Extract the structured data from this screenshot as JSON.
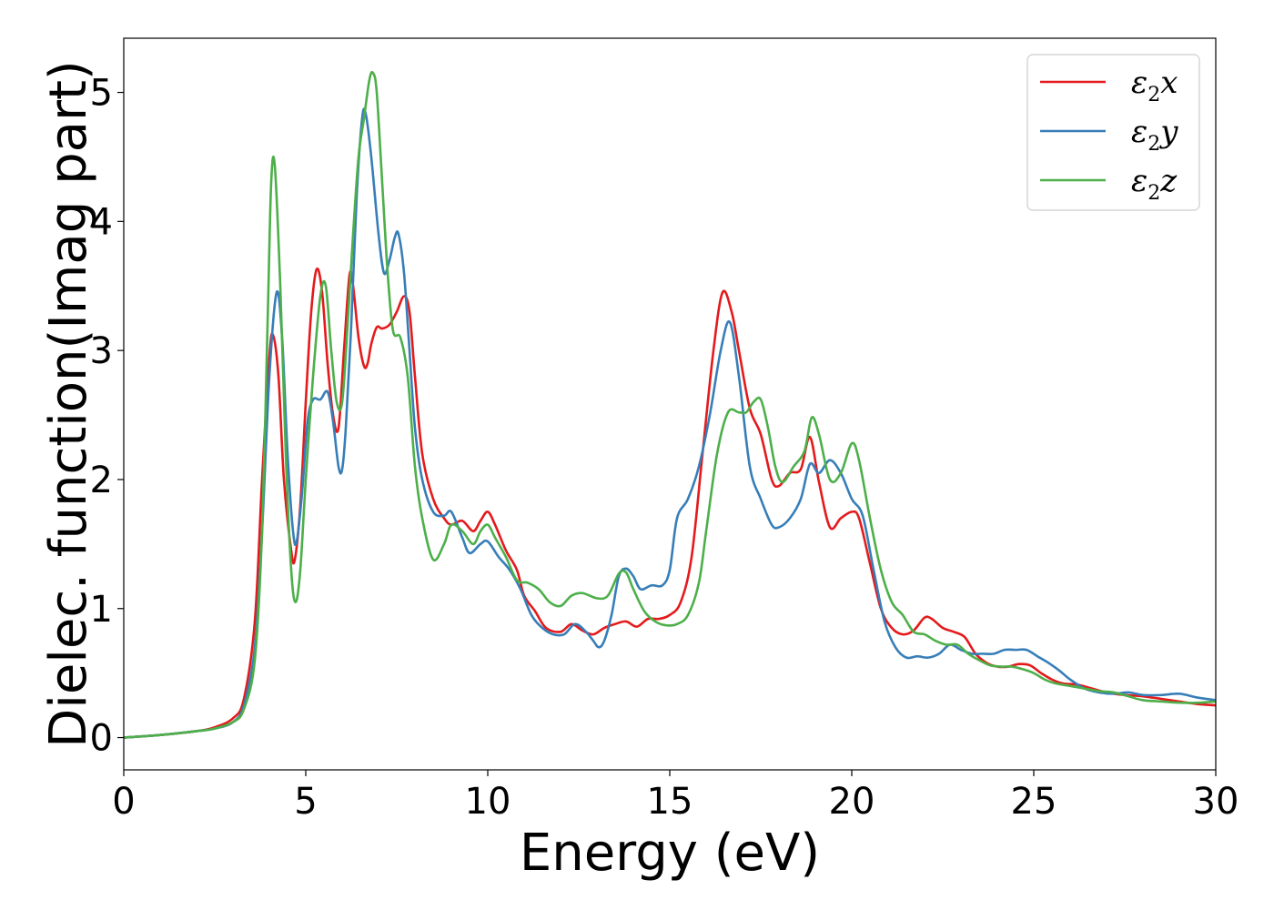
{
  "chart_data": {
    "type": "line",
    "xlabel": "Energy (eV)",
    "ylabel": "Dielec. function(Imag part)",
    "xlim": [
      0,
      30
    ],
    "ylim": [
      -0.25,
      5.42
    ],
    "xticks": [
      0,
      5,
      10,
      15,
      20,
      25,
      30
    ],
    "yticks": [
      0,
      1,
      2,
      3,
      4,
      5
    ],
    "grid": false,
    "legend_position": "top-right",
    "series": [
      {
        "name": "ε2x",
        "legend_base": "ε",
        "legend_sub": "2",
        "legend_suffix": "x",
        "color": "#e41a1c",
        "x": [
          0,
          1,
          2,
          2.5,
          3,
          3.3,
          3.6,
          3.8,
          4.0,
          4.1,
          4.25,
          4.4,
          4.6,
          4.7,
          4.85,
          5.0,
          5.15,
          5.3,
          5.45,
          5.6,
          5.75,
          5.9,
          6.05,
          6.2,
          6.3,
          6.45,
          6.6,
          6.7,
          6.8,
          6.95,
          7.1,
          7.3,
          7.5,
          7.7,
          7.85,
          8.0,
          8.2,
          8.5,
          8.8,
          9.0,
          9.3,
          9.6,
          9.8,
          10.0,
          10.2,
          10.5,
          10.8,
          11.0,
          11.3,
          11.6,
          12.0,
          12.3,
          12.6,
          12.9,
          13.2,
          13.5,
          13.8,
          14.1,
          14.4,
          14.7,
          15.0,
          15.3,
          15.6,
          15.9,
          16.2,
          16.45,
          16.7,
          16.9,
          17.2,
          17.5,
          17.8,
          18.0,
          18.3,
          18.6,
          18.85,
          19.1,
          19.4,
          19.7,
          20.0,
          20.2,
          20.5,
          20.8,
          21.1,
          21.4,
          21.7,
          22.0,
          22.2,
          22.5,
          22.8,
          23.1,
          23.4,
          23.7,
          24.0,
          24.3,
          24.6,
          24.9,
          25.2,
          25.5,
          25.8,
          26.2,
          26.6,
          27.0,
          27.5,
          28.0,
          28.5,
          29.0,
          29.5,
          30.0
        ],
        "values": [
          0.0,
          0.02,
          0.05,
          0.08,
          0.15,
          0.3,
          0.9,
          2.0,
          2.95,
          3.12,
          2.8,
          2.0,
          1.45,
          1.38,
          1.8,
          2.6,
          3.3,
          3.63,
          3.45,
          2.9,
          2.5,
          2.4,
          3.0,
          3.58,
          3.5,
          3.1,
          2.88,
          2.9,
          3.05,
          3.18,
          3.17,
          3.2,
          3.3,
          3.42,
          3.3,
          2.8,
          2.2,
          1.85,
          1.7,
          1.65,
          1.68,
          1.6,
          1.68,
          1.75,
          1.65,
          1.45,
          1.3,
          1.1,
          0.98,
          0.85,
          0.82,
          0.88,
          0.83,
          0.8,
          0.85,
          0.88,
          0.9,
          0.86,
          0.92,
          0.92,
          0.95,
          1.05,
          1.4,
          2.2,
          3.0,
          3.45,
          3.3,
          3.0,
          2.55,
          2.35,
          2.0,
          1.95,
          2.05,
          2.08,
          2.33,
          1.98,
          1.63,
          1.7,
          1.75,
          1.7,
          1.35,
          1.0,
          0.85,
          0.8,
          0.83,
          0.93,
          0.92,
          0.85,
          0.82,
          0.78,
          0.65,
          0.58,
          0.55,
          0.55,
          0.57,
          0.56,
          0.5,
          0.45,
          0.42,
          0.41,
          0.38,
          0.35,
          0.33,
          0.32,
          0.3,
          0.28,
          0.26,
          0.25
        ]
      },
      {
        "name": "ε2y",
        "legend_base": "ε",
        "legend_sub": "2",
        "legend_suffix": "y",
        "color": "#377eb8",
        "x": [
          0,
          1,
          2,
          2.5,
          3,
          3.3,
          3.6,
          3.8,
          4.0,
          4.2,
          4.35,
          4.5,
          4.65,
          4.75,
          4.9,
          5.05,
          5.2,
          5.4,
          5.6,
          5.75,
          5.9,
          6.0,
          6.1,
          6.25,
          6.4,
          6.55,
          6.65,
          6.8,
          7.0,
          7.15,
          7.3,
          7.45,
          7.55,
          7.7,
          7.85,
          8.0,
          8.2,
          8.5,
          8.8,
          9.0,
          9.3,
          9.5,
          9.8,
          10.0,
          10.3,
          10.6,
          10.9,
          11.2,
          11.5,
          11.8,
          12.1,
          12.4,
          12.7,
          12.9,
          13.05,
          13.2,
          13.4,
          13.6,
          13.8,
          14.0,
          14.2,
          14.5,
          14.8,
          15.0,
          15.2,
          15.5,
          15.8,
          16.1,
          16.4,
          16.65,
          16.9,
          17.2,
          17.5,
          17.8,
          18.0,
          18.3,
          18.6,
          18.85,
          19.1,
          19.4,
          19.7,
          20.0,
          20.3,
          20.6,
          20.9,
          21.2,
          21.5,
          21.8,
          22.1,
          22.4,
          22.7,
          23.0,
          23.3,
          23.6,
          23.9,
          24.2,
          24.5,
          24.8,
          25.1,
          25.4,
          25.7,
          26.0,
          26.4,
          26.8,
          27.2,
          27.6,
          28.0,
          28.5,
          29.0,
          29.5,
          30.0
        ],
        "values": [
          0.0,
          0.02,
          0.05,
          0.07,
          0.12,
          0.25,
          0.7,
          1.6,
          2.8,
          3.45,
          3.1,
          2.2,
          1.6,
          1.52,
          1.9,
          2.45,
          2.62,
          2.62,
          2.68,
          2.45,
          2.1,
          2.08,
          2.4,
          3.2,
          4.2,
          4.8,
          4.83,
          4.5,
          3.9,
          3.6,
          3.7,
          3.88,
          3.9,
          3.6,
          3.0,
          2.4,
          2.0,
          1.75,
          1.72,
          1.75,
          1.55,
          1.43,
          1.5,
          1.52,
          1.4,
          1.3,
          1.15,
          0.95,
          0.85,
          0.8,
          0.8,
          0.88,
          0.82,
          0.75,
          0.7,
          0.75,
          0.95,
          1.25,
          1.31,
          1.25,
          1.15,
          1.18,
          1.18,
          1.3,
          1.7,
          1.85,
          2.1,
          2.5,
          3.0,
          3.22,
          2.8,
          2.1,
          1.85,
          1.65,
          1.63,
          1.7,
          1.85,
          2.12,
          2.05,
          2.15,
          2.05,
          1.85,
          1.72,
          1.3,
          0.9,
          0.7,
          0.62,
          0.63,
          0.62,
          0.65,
          0.72,
          0.68,
          0.65,
          0.65,
          0.65,
          0.68,
          0.68,
          0.68,
          0.63,
          0.58,
          0.52,
          0.45,
          0.38,
          0.35,
          0.34,
          0.35,
          0.33,
          0.33,
          0.34,
          0.31,
          0.29
        ]
      },
      {
        "name": "ε2z",
        "legend_base": "ε",
        "legend_sub": "2",
        "legend_suffix": "z",
        "color": "#4daf4a",
        "x": [
          0,
          1,
          2,
          2.5,
          3,
          3.3,
          3.6,
          3.8,
          3.95,
          4.05,
          4.15,
          4.3,
          4.45,
          4.6,
          4.72,
          4.85,
          5.0,
          5.2,
          5.4,
          5.55,
          5.7,
          5.85,
          6.0,
          6.15,
          6.3,
          6.45,
          6.6,
          6.75,
          6.85,
          6.95,
          7.1,
          7.25,
          7.4,
          7.6,
          7.8,
          8.0,
          8.2,
          8.5,
          8.8,
          9.0,
          9.3,
          9.6,
          9.8,
          10.0,
          10.2,
          10.5,
          10.8,
          11.1,
          11.4,
          11.7,
          12.0,
          12.3,
          12.6,
          13.0,
          13.3,
          13.6,
          13.8,
          14.0,
          14.3,
          14.6,
          14.9,
          15.2,
          15.5,
          15.8,
          16.0,
          16.3,
          16.6,
          16.9,
          17.1,
          17.3,
          17.5,
          17.7,
          17.9,
          18.1,
          18.4,
          18.7,
          18.9,
          19.1,
          19.4,
          19.7,
          20.0,
          20.2,
          20.5,
          20.8,
          21.1,
          21.4,
          21.7,
          22.0,
          22.3,
          22.6,
          22.9,
          23.2,
          23.5,
          23.8,
          24.1,
          24.4,
          24.7,
          25.0,
          25.3,
          25.6,
          26.0,
          26.4,
          26.8,
          27.2,
          27.6,
          28.0,
          28.5,
          29.0,
          29.5,
          30.0
        ],
        "values": [
          0.0,
          0.02,
          0.05,
          0.07,
          0.12,
          0.22,
          0.6,
          1.6,
          3.2,
          4.3,
          4.43,
          3.5,
          2.2,
          1.3,
          1.05,
          1.3,
          2.0,
          2.8,
          3.42,
          3.5,
          3.0,
          2.6,
          2.6,
          3.2,
          3.9,
          4.5,
          4.8,
          5.1,
          5.15,
          5.0,
          4.3,
          3.6,
          3.15,
          3.1,
          2.8,
          2.1,
          1.7,
          1.38,
          1.5,
          1.65,
          1.6,
          1.5,
          1.6,
          1.65,
          1.55,
          1.4,
          1.22,
          1.2,
          1.15,
          1.05,
          1.02,
          1.1,
          1.12,
          1.08,
          1.1,
          1.27,
          1.28,
          1.15,
          0.98,
          0.9,
          0.87,
          0.88,
          0.95,
          1.2,
          1.6,
          2.2,
          2.52,
          2.52,
          2.52,
          2.6,
          2.62,
          2.4,
          2.1,
          1.98,
          2.1,
          2.22,
          2.48,
          2.35,
          2.0,
          2.05,
          2.28,
          2.15,
          1.7,
          1.3,
          1.05,
          0.95,
          0.82,
          0.8,
          0.75,
          0.72,
          0.72,
          0.65,
          0.6,
          0.56,
          0.55,
          0.55,
          0.53,
          0.5,
          0.45,
          0.42,
          0.4,
          0.38,
          0.36,
          0.35,
          0.32,
          0.29,
          0.28,
          0.27,
          0.27,
          0.28
        ]
      }
    ]
  }
}
